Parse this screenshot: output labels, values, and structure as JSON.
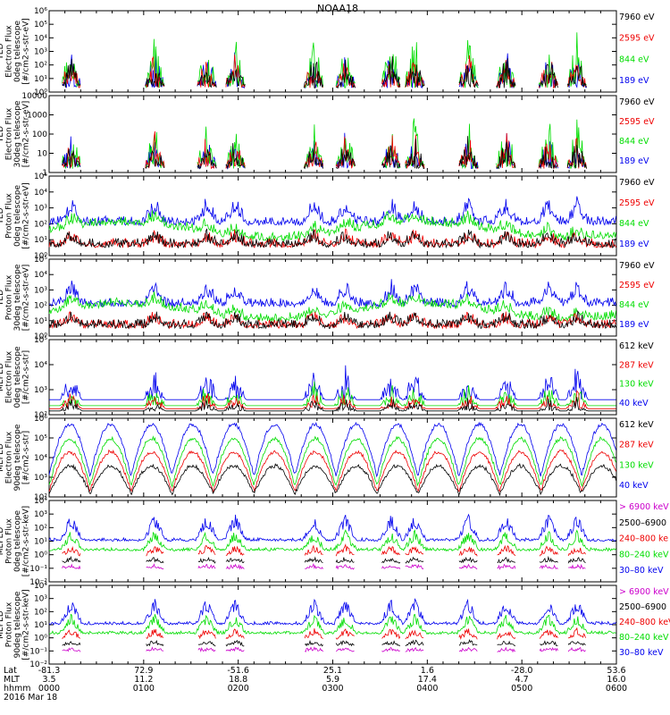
{
  "title": "NOAA18",
  "colors": {
    "black": "#000000",
    "red": "#ee0000",
    "green": "#00dd00",
    "blue": "#0000ee",
    "magenta": "#cc00cc",
    "axis": "#000000"
  },
  "chart_data": [
    {
      "type": "line",
      "panel": 1,
      "ylabel": [
        "TED",
        "Electron Flux",
        "0deg telescope",
        "[#/cm2-s-str-eV]"
      ],
      "yscale": "log",
      "ylim": [
        1,
        1000000
      ],
      "ticks": [
        "10⁰",
        "10¹",
        "10²",
        "10³",
        "10⁴",
        "10⁵",
        "10⁶"
      ],
      "legend": [
        {
          "label": "7960 eV",
          "color": "#000000"
        },
        {
          "label": "2595 eV",
          "color": "#ee0000"
        },
        {
          "label": "844 eV",
          "color": "#00dd00"
        },
        {
          "label": "189 eV",
          "color": "#0000ee"
        }
      ]
    },
    {
      "type": "line",
      "panel": 2,
      "ylabel": [
        "TED",
        "Electron Flux",
        "30deg telescope",
        "[#/cm2-s-str-eV]"
      ],
      "yscale": "log",
      "ylim": [
        1,
        10000
      ],
      "ticks": [
        "1",
        "10",
        "100",
        "1000",
        "10000"
      ],
      "legend": [
        {
          "label": "7960 eV",
          "color": "#000000"
        },
        {
          "label": "2595 eV",
          "color": "#ee0000"
        },
        {
          "label": "844 eV",
          "color": "#00dd00"
        },
        {
          "label": "189 eV",
          "color": "#0000ee"
        }
      ]
    },
    {
      "type": "line",
      "panel": 3,
      "ylabel": [
        "TED",
        "Proton Flux",
        "0deg telescope",
        "[#/cm2-s-str-eV]"
      ],
      "yscale": "log",
      "ylim": [
        1,
        100000
      ],
      "ticks": [
        "10⁰",
        "10¹",
        "10²",
        "10³",
        "10⁴",
        "10⁵"
      ],
      "legend": [
        {
          "label": "7960 eV",
          "color": "#000000"
        },
        {
          "label": "2595 eV",
          "color": "#ee0000"
        },
        {
          "label": "844 eV",
          "color": "#00dd00"
        },
        {
          "label": "189 eV",
          "color": "#0000ee"
        }
      ]
    },
    {
      "type": "line",
      "panel": 4,
      "ylabel": [
        "TED",
        "Proton Flux",
        "30deg telescope",
        "[#/cm2-s-str-eV]"
      ],
      "yscale": "log",
      "ylim": [
        1,
        100000
      ],
      "ticks": [
        "10⁰",
        "10¹",
        "10²",
        "10³",
        "10⁴",
        "10⁵"
      ],
      "legend": [
        {
          "label": "7960 eV",
          "color": "#000000"
        },
        {
          "label": "2595 eV",
          "color": "#ee0000"
        },
        {
          "label": "844 eV",
          "color": "#00dd00"
        },
        {
          "label": "189 eV",
          "color": "#0000ee"
        }
      ]
    },
    {
      "type": "line",
      "panel": 5,
      "ylabel": [
        "MEPED",
        "Electron Flux",
        "0deg telescope",
        "[#/cm2-s-str]"
      ],
      "yscale": "log",
      "ylim": [
        100,
        100000
      ],
      "ticks": [
        "10²",
        "10³",
        "10⁴",
        "10⁵"
      ],
      "legend": [
        {
          "label": "612 keV",
          "color": "#000000"
        },
        {
          "label": "287 keV",
          "color": "#ee0000"
        },
        {
          "label": "130 keV",
          "color": "#00dd00"
        },
        {
          "label": "40 keV",
          "color": "#0000ee"
        }
      ]
    },
    {
      "type": "line",
      "panel": 6,
      "ylabel": [
        "MEPED",
        "Electron Flux",
        "90deg telescope",
        "[#/cm2-s-str]"
      ],
      "yscale": "log",
      "ylim": [
        100,
        1000000
      ],
      "ticks": [
        "10²",
        "10³",
        "10⁴",
        "10⁵",
        "10⁶"
      ],
      "legend": [
        {
          "label": "612 keV",
          "color": "#000000"
        },
        {
          "label": "287 keV",
          "color": "#ee0000"
        },
        {
          "label": "130 keV",
          "color": "#00dd00"
        },
        {
          "label": "40 keV",
          "color": "#0000ee"
        }
      ]
    },
    {
      "type": "line",
      "panel": 7,
      "ylabel": [
        "MEPED",
        "Proton Flux",
        "0deg telescope",
        "[#/cm2-s-str-keV]"
      ],
      "yscale": "log",
      "ylim": [
        0.01,
        10000
      ],
      "ticks": [
        "10⁻²",
        "10⁻¹",
        "10⁰",
        "10¹",
        "10²",
        "10³",
        "10⁴"
      ],
      "legend": [
        {
          "label": "> 6900 keV",
          "color": "#cc00cc"
        },
        {
          "label": "2500–6900",
          "color": "#000000"
        },
        {
          "label": "240–800 ke",
          "color": "#ee0000"
        },
        {
          "label": "80–240 keV",
          "color": "#00dd00"
        },
        {
          "label": "30–80 keV",
          "color": "#0000ee"
        }
      ]
    },
    {
      "type": "line",
      "panel": 8,
      "ylabel": [
        "MEPED",
        "Proton Flux",
        "90deg telescope",
        "[#/cm2-s-str-keV]"
      ],
      "yscale": "log",
      "ylim": [
        0.01,
        10000
      ],
      "ticks": [
        "10⁻²",
        "10⁻¹",
        "10⁰",
        "10¹",
        "10²",
        "10³",
        "10⁴"
      ],
      "legend": [
        {
          "label": "> 6900 keV",
          "color": "#cc00cc"
        },
        {
          "label": "2500–6900",
          "color": "#000000"
        },
        {
          "label": "240–800 keV",
          "color": "#ee0000"
        },
        {
          "label": "80–240 keV",
          "color": "#00dd00"
        },
        {
          "label": "30–80 keV",
          "color": "#0000ee"
        }
      ]
    }
  ],
  "xaxis": {
    "row_labels": [
      "Lat",
      "MLT",
      "hhmm",
      "2016 Mar 18"
    ],
    "ticks": [
      {
        "lat": "-81.3",
        "mlt": "3.5",
        "hhmm": "0000"
      },
      {
        "lat": "72.9",
        "mlt": "11.2",
        "hhmm": "0100"
      },
      {
        "lat": "-51.6",
        "mlt": "18.8",
        "hhmm": "0200"
      },
      {
        "lat": "25.1",
        "mlt": "5.9",
        "hhmm": "0300"
      },
      {
        "lat": "1.6",
        "mlt": "17.4",
        "hhmm": "0400"
      },
      {
        "lat": "-28.0",
        "mlt": "4.7",
        "hhmm": "0500"
      },
      {
        "lat": "53.6",
        "mlt": "16.0",
        "hhmm": "0600"
      }
    ],
    "range_minutes": [
      0,
      360
    ]
  }
}
